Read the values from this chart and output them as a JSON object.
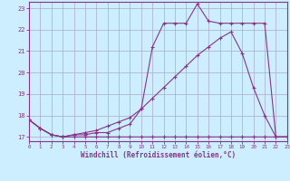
{
  "bg_color": "#cceeff",
  "grid_color": "#aaaacc",
  "line_color": "#883388",
  "xlabel": "Windchill (Refroidissement éolien,°C)",
  "xlim": [
    0,
    23
  ],
  "ylim": [
    16.8,
    23.3
  ],
  "yticks": [
    17,
    18,
    19,
    20,
    21,
    22,
    23
  ],
  "xticks": [
    0,
    1,
    2,
    3,
    4,
    5,
    6,
    7,
    8,
    9,
    10,
    11,
    12,
    13,
    14,
    15,
    16,
    17,
    18,
    19,
    20,
    21,
    22,
    23
  ],
  "line1_x": [
    0,
    1,
    2,
    3,
    4,
    5,
    6,
    7,
    8,
    9,
    10,
    11,
    12,
    13,
    14,
    15,
    16,
    17,
    18,
    19,
    20,
    21,
    22,
    23
  ],
  "line1_y": [
    17.8,
    17.4,
    17.1,
    17.0,
    17.0,
    17.0,
    17.0,
    17.0,
    17.0,
    17.0,
    17.0,
    17.0,
    17.0,
    17.0,
    17.0,
    17.0,
    17.0,
    17.0,
    17.0,
    17.0,
    17.0,
    17.0,
    17.0,
    17.0
  ],
  "line2_x": [
    0,
    1,
    2,
    3,
    4,
    5,
    6,
    7,
    8,
    9,
    10,
    11,
    12,
    13,
    14,
    15,
    16,
    17,
    18,
    19,
    20,
    21,
    22,
    23
  ],
  "line2_y": [
    17.8,
    17.4,
    17.1,
    17.0,
    17.1,
    17.1,
    17.2,
    17.2,
    17.4,
    17.6,
    18.3,
    21.2,
    22.3,
    22.3,
    22.3,
    23.2,
    22.4,
    22.3,
    22.3,
    22.3,
    22.3,
    22.3,
    17.0,
    17.0
  ],
  "line3_x": [
    0,
    1,
    2,
    3,
    4,
    5,
    6,
    7,
    8,
    9,
    10,
    11,
    12,
    13,
    14,
    15,
    16,
    17,
    18,
    19,
    20,
    21,
    22,
    23
  ],
  "line3_y": [
    17.8,
    17.4,
    17.1,
    17.0,
    17.1,
    17.2,
    17.3,
    17.5,
    17.7,
    17.9,
    18.3,
    18.8,
    19.3,
    19.8,
    20.3,
    20.8,
    21.2,
    21.6,
    21.9,
    20.9,
    19.3,
    18.0,
    17.0,
    17.0
  ]
}
